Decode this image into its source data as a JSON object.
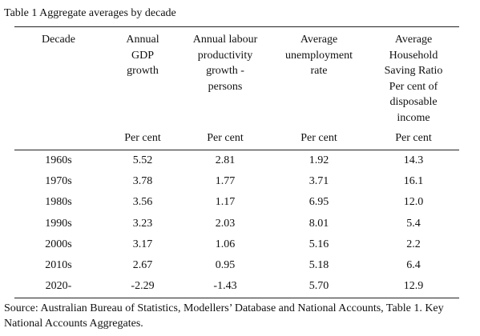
{
  "table": {
    "caption": "Table 1 Aggregate averages by decade",
    "headers": [
      "Decade",
      "Annual\nGDP\ngrowth",
      "Annual labour\nproductivity\ngrowth -\npersons",
      "Average\nunemployment\nrate",
      "Average\nHousehold\nSaving Ratio\nPer cent of\ndisposable\nincome"
    ],
    "units": [
      "",
      "Per cent",
      "Per cent",
      "Per cent",
      "Per cent"
    ],
    "rows": [
      [
        "1960s",
        "5.52",
        "2.81",
        "1.92",
        "14.3"
      ],
      [
        "1970s",
        "3.78",
        "1.77",
        "3.71",
        "16.1"
      ],
      [
        "1980s",
        "3.56",
        "1.17",
        "6.95",
        "12.0"
      ],
      [
        "1990s",
        "3.23",
        "2.03",
        "8.01",
        "5.4"
      ],
      [
        "2000s",
        "3.17",
        "1.06",
        "5.16",
        "2.2"
      ],
      [
        "2010s",
        "2.67",
        "0.95",
        "5.18",
        "6.4"
      ],
      [
        "2020-",
        "-2.29",
        "-1.43",
        "5.70",
        "12.9"
      ]
    ],
    "source": "Source: Australian Bureau of Statistics, Modellers’ Database and National Accounts, Table 1. Key National Accounts Aggregates."
  }
}
